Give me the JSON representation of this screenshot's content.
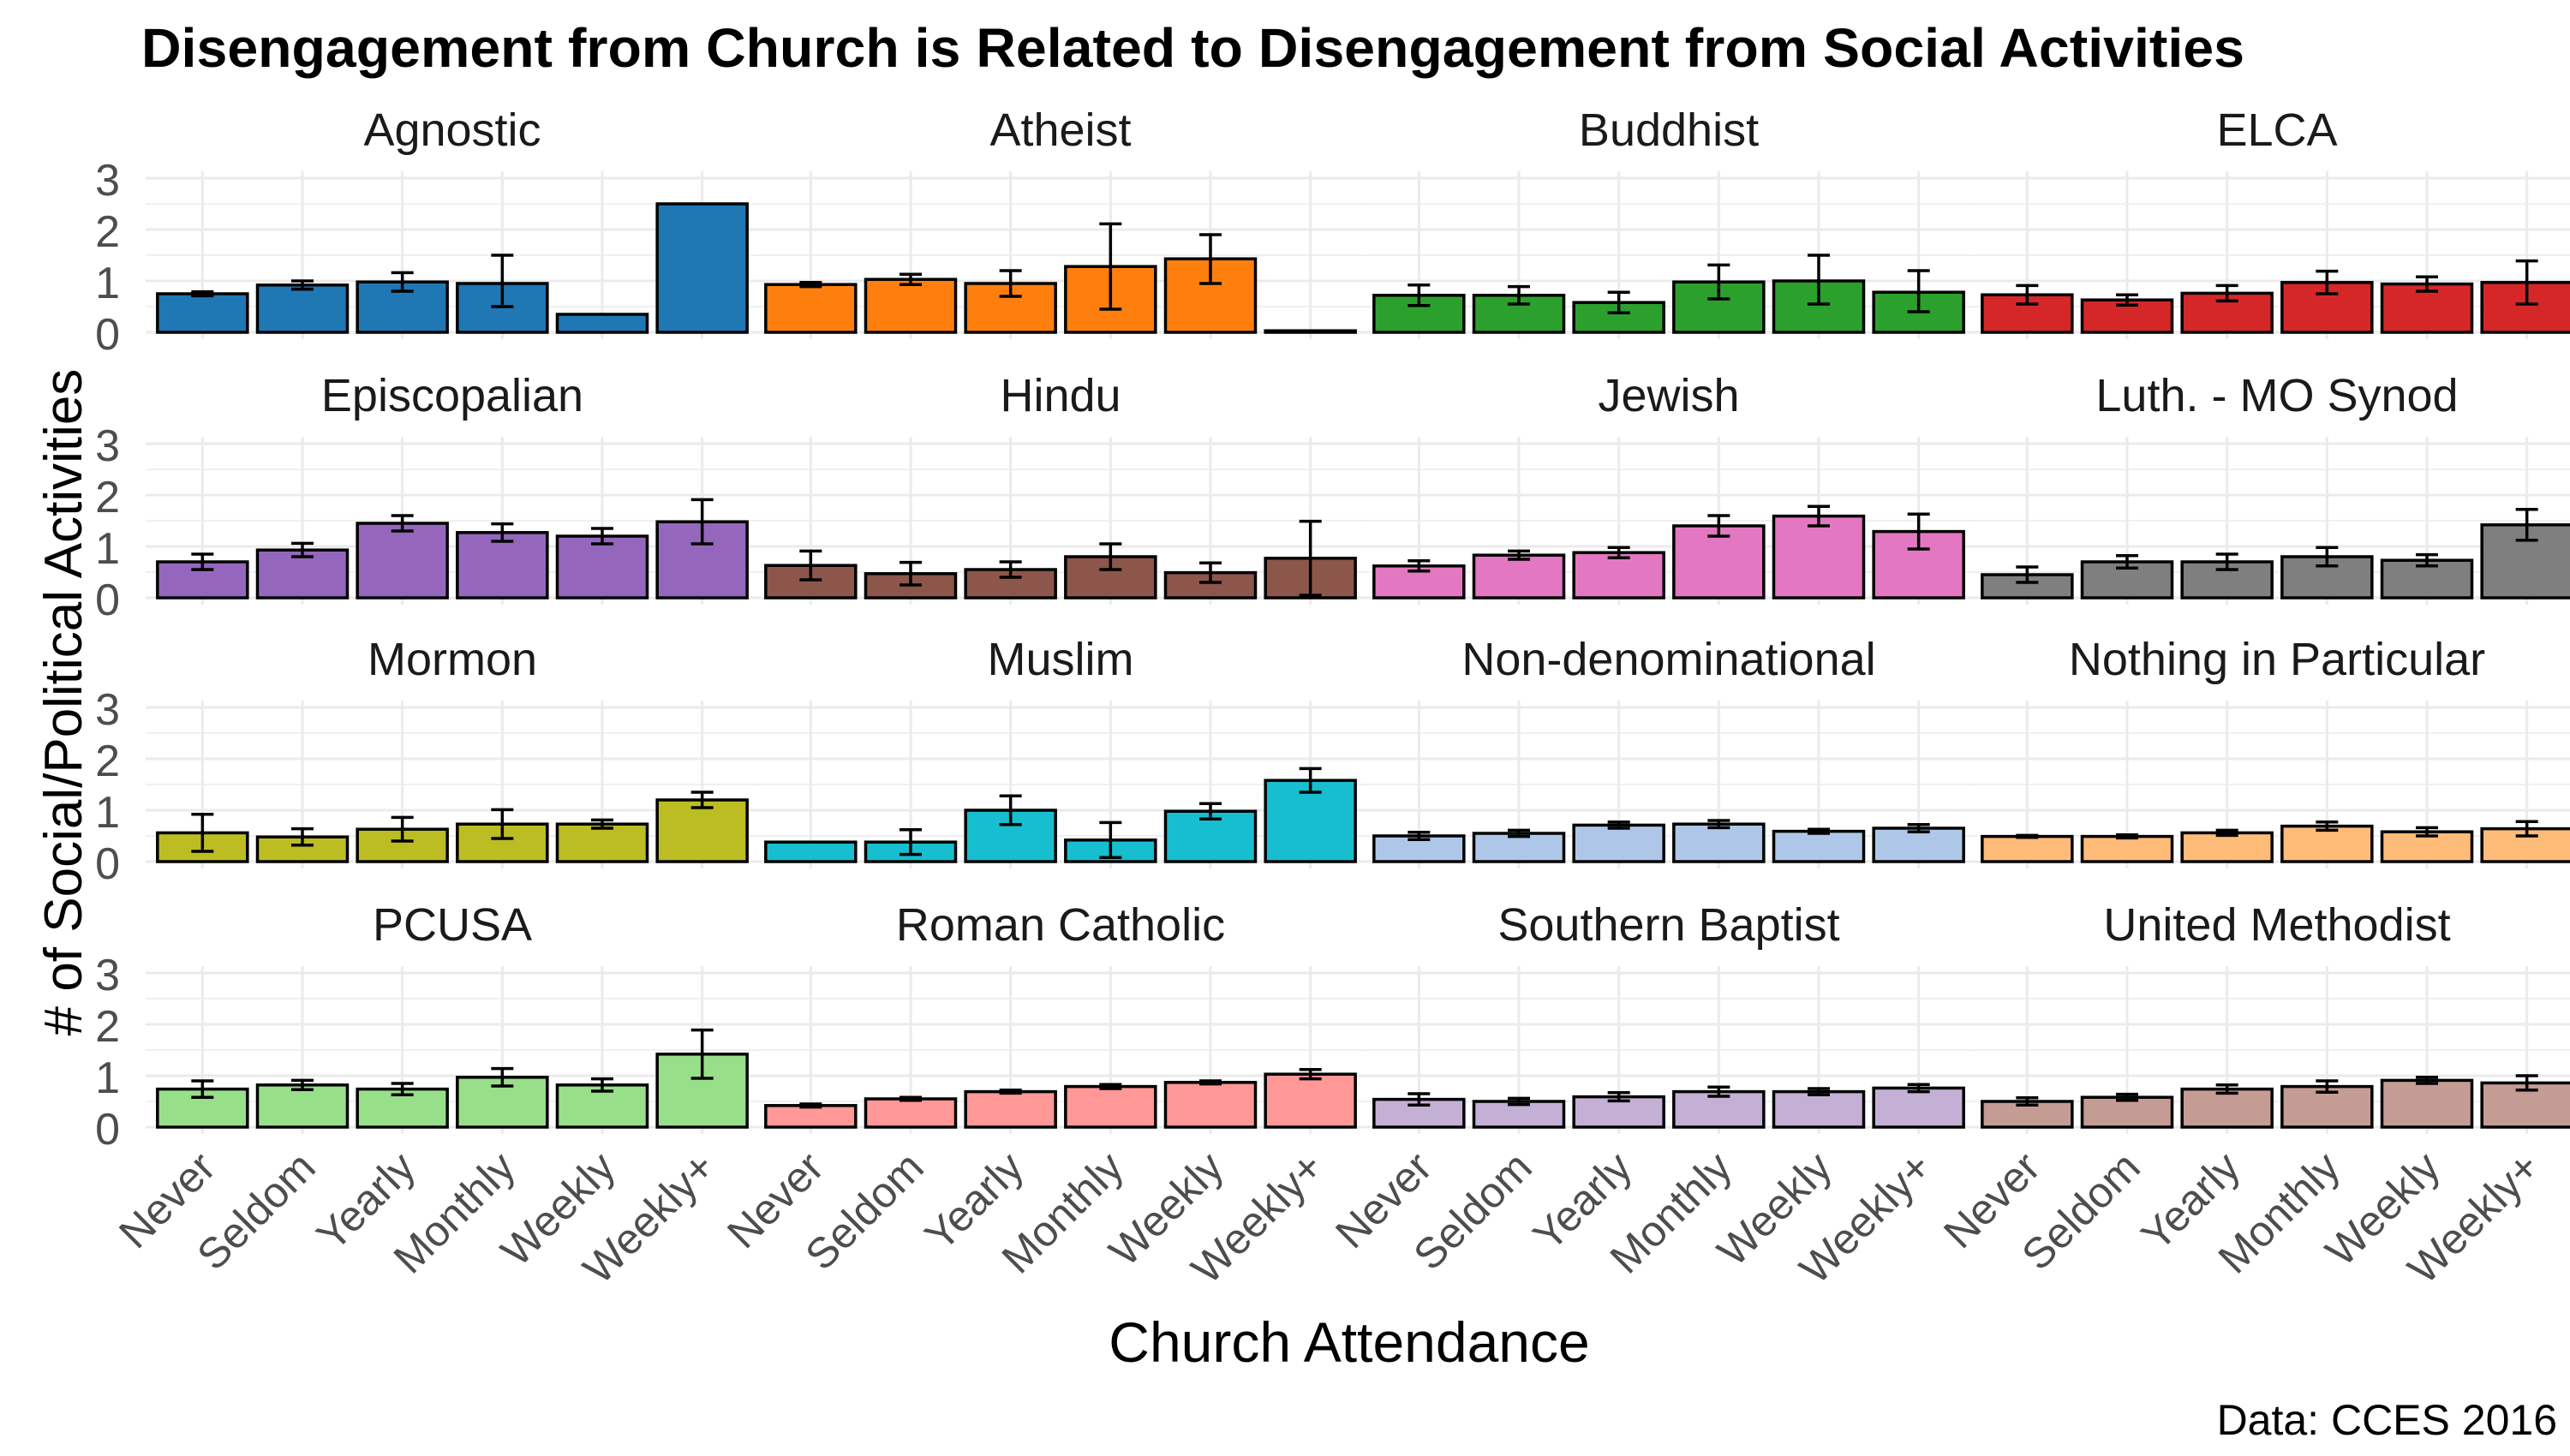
{
  "figure": {
    "title": "Disengagement from Church is Related to Disengagement from Social Activities",
    "ylabel": "# of Social/Political Activities",
    "xlabel": "Church Attendance",
    "caption": "Data: CCES 2016"
  },
  "chart_data": {
    "type": "bar",
    "layout": "faceted 4x4 grid",
    "categories": [
      "Never",
      "Seldom",
      "Yearly",
      "Monthly",
      "Weekly",
      "Weekly+"
    ],
    "ylim": [
      0,
      3
    ],
    "yticks": [
      0,
      1,
      2,
      3
    ],
    "grid": true,
    "error_bars": true,
    "panels": [
      {
        "title": "Agnostic",
        "color": "#1f77b4",
        "values": [
          0.75,
          0.92,
          0.98,
          0.95,
          0.35,
          2.5
        ],
        "lo": [
          0.71,
          0.84,
          0.8,
          0.5,
          0.35,
          2.5
        ],
        "hi": [
          0.79,
          1.0,
          1.16,
          1.5,
          0.35,
          2.5
        ]
      },
      {
        "title": "Atheist",
        "color": "#ff7f0e",
        "values": [
          0.93,
          1.03,
          0.95,
          1.28,
          1.43,
          0.03
        ],
        "lo": [
          0.89,
          0.93,
          0.7,
          0.45,
          0.95,
          0.03
        ],
        "hi": [
          0.97,
          1.13,
          1.2,
          2.11,
          1.9,
          0.03
        ]
      },
      {
        "title": "Buddhist",
        "color": "#2ca02c",
        "values": [
          0.72,
          0.72,
          0.58,
          0.98,
          1.0,
          0.78
        ],
        "lo": [
          0.52,
          0.55,
          0.38,
          0.65,
          0.55,
          0.4
        ],
        "hi": [
          0.92,
          0.89,
          0.78,
          1.31,
          1.5,
          1.2
        ]
      },
      {
        "title": "ELCA",
        "color": "#d62728",
        "values": [
          0.73,
          0.63,
          0.76,
          0.97,
          0.94,
          0.97
        ],
        "lo": [
          0.55,
          0.53,
          0.61,
          0.75,
          0.8,
          0.55
        ],
        "hi": [
          0.91,
          0.73,
          0.91,
          1.19,
          1.08,
          1.39
        ]
      },
      {
        "title": "Episcopalian",
        "color": "#9467bd",
        "values": [
          0.7,
          0.93,
          1.45,
          1.27,
          1.2,
          1.48
        ],
        "lo": [
          0.55,
          0.8,
          1.3,
          1.1,
          1.05,
          1.05
        ],
        "hi": [
          0.85,
          1.06,
          1.6,
          1.44,
          1.35,
          1.91
        ]
      },
      {
        "title": "Hindu",
        "color": "#8c564b",
        "values": [
          0.63,
          0.47,
          0.55,
          0.8,
          0.49,
          0.77
        ],
        "lo": [
          0.35,
          0.25,
          0.4,
          0.55,
          0.3,
          0.05
        ],
        "hi": [
          0.91,
          0.69,
          0.7,
          1.05,
          0.68,
          1.49
        ]
      },
      {
        "title": "Jewish",
        "color": "#e377c2",
        "values": [
          0.62,
          0.83,
          0.88,
          1.4,
          1.59,
          1.29
        ],
        "lo": [
          0.52,
          0.75,
          0.78,
          1.2,
          1.4,
          0.95
        ],
        "hi": [
          0.72,
          0.91,
          0.98,
          1.6,
          1.78,
          1.63
        ]
      },
      {
        "title": "Luth. - MO Synod",
        "color": "#7f7f7f",
        "values": [
          0.45,
          0.7,
          0.7,
          0.8,
          0.73,
          1.42
        ],
        "lo": [
          0.3,
          0.58,
          0.55,
          0.62,
          0.62,
          1.12
        ],
        "hi": [
          0.6,
          0.82,
          0.85,
          0.98,
          0.84,
          1.72
        ]
      },
      {
        "title": "Mormon",
        "color": "#bcbd22",
        "values": [
          0.56,
          0.48,
          0.63,
          0.73,
          0.73,
          1.2
        ],
        "lo": [
          0.2,
          0.32,
          0.4,
          0.45,
          0.65,
          1.05
        ],
        "hi": [
          0.92,
          0.64,
          0.86,
          1.01,
          0.81,
          1.35
        ]
      },
      {
        "title": "Muslim",
        "color": "#17becf",
        "values": [
          0.38,
          0.38,
          1.0,
          0.42,
          0.98,
          1.58
        ],
        "lo": [
          0.38,
          0.14,
          0.72,
          0.08,
          0.83,
          1.35
        ],
        "hi": [
          0.38,
          0.62,
          1.28,
          0.76,
          1.13,
          1.81
        ]
      },
      {
        "title": "Non-denominational",
        "color": "#aec7e8",
        "values": [
          0.5,
          0.55,
          0.71,
          0.73,
          0.59,
          0.65
        ],
        "lo": [
          0.43,
          0.49,
          0.65,
          0.66,
          0.55,
          0.58
        ],
        "hi": [
          0.57,
          0.61,
          0.77,
          0.8,
          0.63,
          0.72
        ]
      },
      {
        "title": "Nothing in Particular",
        "color": "#ffbb78",
        "values": [
          0.49,
          0.49,
          0.56,
          0.69,
          0.58,
          0.64
        ],
        "lo": [
          0.47,
          0.46,
          0.51,
          0.61,
          0.5,
          0.5
        ],
        "hi": [
          0.51,
          0.52,
          0.61,
          0.77,
          0.66,
          0.78
        ]
      },
      {
        "title": "PCUSA",
        "color": "#98df8a",
        "values": [
          0.74,
          0.82,
          0.74,
          0.97,
          0.82,
          1.42
        ],
        "lo": [
          0.58,
          0.73,
          0.63,
          0.8,
          0.7,
          0.95
        ],
        "hi": [
          0.9,
          0.91,
          0.85,
          1.14,
          0.94,
          1.89
        ]
      },
      {
        "title": "Roman Catholic",
        "color": "#ff9896",
        "values": [
          0.42,
          0.55,
          0.69,
          0.79,
          0.87,
          1.03
        ],
        "lo": [
          0.39,
          0.52,
          0.66,
          0.75,
          0.84,
          0.94
        ],
        "hi": [
          0.45,
          0.58,
          0.72,
          0.83,
          0.9,
          1.12
        ]
      },
      {
        "title": "Southern Baptist",
        "color": "#c5b0d5",
        "values": [
          0.54,
          0.5,
          0.59,
          0.69,
          0.69,
          0.76
        ],
        "lo": [
          0.43,
          0.44,
          0.51,
          0.6,
          0.63,
          0.69
        ],
        "hi": [
          0.65,
          0.56,
          0.67,
          0.78,
          0.75,
          0.83
        ]
      },
      {
        "title": "United Methodist",
        "color": "#c49c94",
        "values": [
          0.5,
          0.58,
          0.74,
          0.79,
          0.91,
          0.86
        ],
        "lo": [
          0.43,
          0.52,
          0.66,
          0.68,
          0.85,
          0.72
        ],
        "hi": [
          0.57,
          0.64,
          0.82,
          0.9,
          0.97,
          1.0
        ]
      }
    ]
  }
}
